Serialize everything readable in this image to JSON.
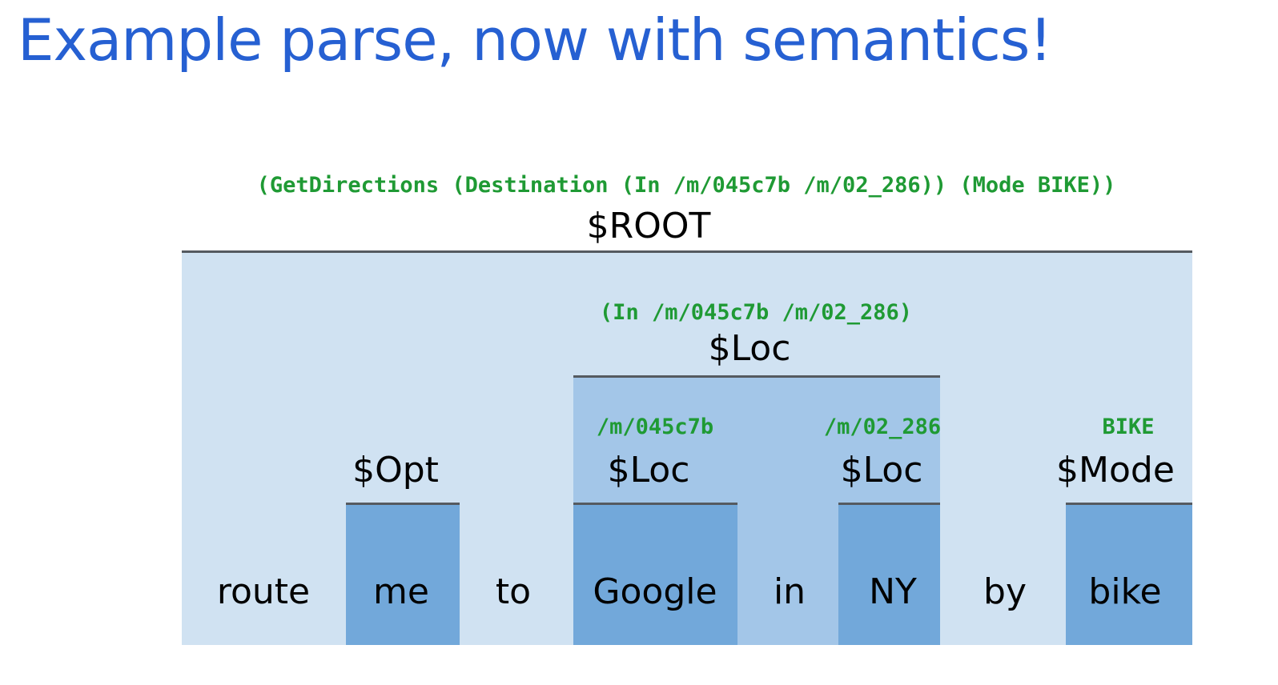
{
  "title": "Example parse, now with semantics!",
  "nodes": {
    "root": {
      "label": "$ROOT",
      "semantics": "(GetDirections (Destination (In /m/045c7b /m/02_286)) (Mode BIKE))"
    },
    "loc": {
      "label": "$Loc",
      "semantics": "(In /m/045c7b /m/02_286)"
    },
    "opt": {
      "label": "$Opt"
    },
    "loc1": {
      "label": "$Loc",
      "semantics": "/m/045c7b"
    },
    "loc2": {
      "label": "$Loc",
      "semantics": "/m/02_286"
    },
    "mode": {
      "label": "$Mode",
      "semantics": "BIKE"
    }
  },
  "tokens": [
    "route",
    "me",
    "to",
    "Google",
    "in",
    "NY",
    "by",
    "bike"
  ],
  "colors": {
    "title": "#2660d2",
    "semantics": "#1f9a34",
    "root_fill": "#d0e2f2",
    "loc_fill": "#a3c6e8",
    "leaf_fill": "#72a8da",
    "bar": "#555a60"
  }
}
